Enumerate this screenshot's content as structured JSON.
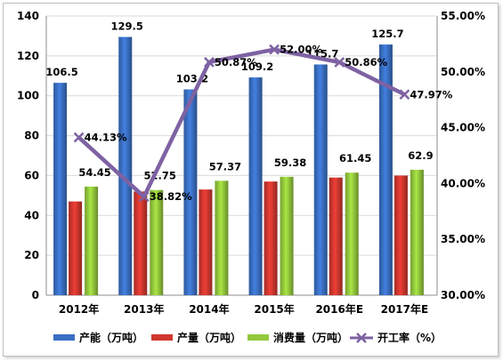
{
  "chart_data": {
    "type": "bar",
    "categories": [
      "2012年",
      "2013年",
      "2014年",
      "2015年",
      "2016年E",
      "2017年E"
    ],
    "series": [
      {
        "name": "产能（万吨）",
        "kind": "bar",
        "axis": "left",
        "color": "#3a6fc4",
        "values": [
          106.5,
          129.5,
          103.2,
          109.2,
          115.7,
          125.7
        ]
      },
      {
        "name": "产量（万吨）",
        "kind": "bar",
        "axis": "left",
        "color": "#d0372f",
        "values": [
          47,
          52,
          53,
          57,
          59,
          60
        ]
      },
      {
        "name": "消费量（万吨）",
        "kind": "bar",
        "axis": "left",
        "color": "#93c83c",
        "values": [
          54.45,
          52.75,
          57.37,
          59.38,
          61.45,
          62.9
        ]
      },
      {
        "name": "开工率（%）",
        "kind": "line",
        "axis": "right",
        "color": "#7e62a3",
        "values": [
          44.13,
          38.82,
          50.87,
          52.0,
          50.86,
          47.97
        ]
      }
    ],
    "data_labels": {
      "capacity": [
        "106.5",
        "129.5",
        "103.2",
        "109.2",
        "115.7",
        "125.7"
      ],
      "consumption": [
        "54.45",
        "52.75",
        "57.37",
        "59.38",
        "61.45",
        "62.9"
      ],
      "rate": [
        "44.13%",
        "38.82%",
        "50.87%",
        "52.00%",
        "50.86%",
        "47.97%"
      ]
    },
    "y_left": {
      "ylim": [
        0,
        140
      ],
      "ticks": [
        "0",
        "20",
        "40",
        "60",
        "80",
        "100",
        "120",
        "140"
      ]
    },
    "y_right": {
      "ylim": [
        30,
        55
      ],
      "ticks": [
        "30.00%",
        "35.00%",
        "40.00%",
        "45.00%",
        "50.00%",
        "55.00%"
      ]
    },
    "grid": true,
    "legend_position": "bottom"
  }
}
